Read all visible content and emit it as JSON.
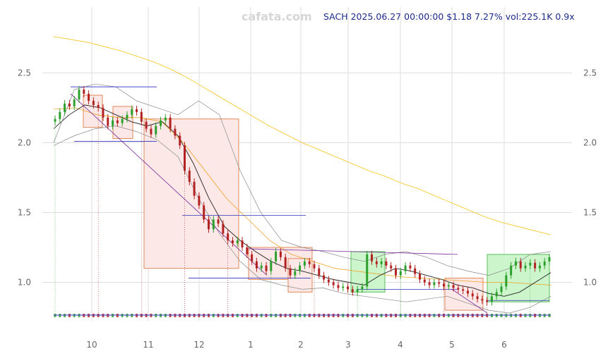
{
  "watermark": "cafata.com",
  "header": {
    "text": "SACH 2025.06.27 00:00:00 $1.18 7.27% vol:225.1K 0.9x"
  },
  "colors": {
    "up": "#2ca02c",
    "down": "#b22222",
    "ma_long": "#f5c518",
    "ma_mid": "#f0a020",
    "ma_short": "#222222",
    "band": "#888888",
    "trend": "#7a2a9a",
    "level": "#3030c0",
    "box_down": "#fde8e8",
    "box_up": "#ccf5cc"
  },
  "chart_data": {
    "type": "candlestick",
    "title": "",
    "x_ticks": [
      "10",
      "11",
      "12",
      "1",
      "2",
      "3",
      "4",
      "5",
      "6"
    ],
    "y_ticks": [
      "1.0",
      "1.5",
      "2.0",
      "2.5"
    ],
    "ylim": [
      0.75,
      2.82
    ],
    "xlim": [
      0,
      1
    ],
    "tick_positions": [
      0.13,
      0.2,
      0.33,
      0.46,
      0.59,
      0.72,
      0.78,
      0.84,
      0.92
    ],
    "close": [
      2.17,
      2.22,
      2.28,
      2.26,
      2.31,
      2.38,
      2.35,
      2.3,
      2.27,
      2.25,
      2.18,
      2.12,
      2.16,
      2.14,
      2.17,
      2.2,
      2.24,
      2.22,
      2.15,
      2.1,
      2.06,
      2.12,
      2.16,
      2.18,
      2.1,
      2.05,
      1.98,
      1.8,
      1.72,
      1.62,
      1.55,
      1.45,
      1.38,
      1.45,
      1.42,
      1.35,
      1.3,
      1.28,
      1.3,
      1.25,
      1.2,
      1.15,
      1.1,
      1.12,
      1.08,
      1.15,
      1.22,
      1.18,
      1.1,
      1.05,
      1.08,
      1.12,
      1.15,
      1.13,
      1.1,
      1.05,
      1.02,
      1.0,
      0.98,
      0.96,
      0.97,
      0.95,
      0.93,
      0.95,
      0.97,
      1.2,
      1.15,
      1.13,
      1.15,
      1.12,
      1.1,
      1.05,
      1.08,
      1.12,
      1.1,
      1.06,
      1.02,
      1.0,
      0.98,
      1.0,
      0.99,
      0.97,
      0.98,
      0.96,
      0.95,
      0.94,
      0.92,
      0.9,
      0.88,
      0.87,
      0.86,
      0.9,
      0.93,
      0.97,
      1.05,
      1.12,
      1.15,
      1.1,
      1.12,
      1.14,
      1.1,
      1.12,
      1.15,
      1.18
    ],
    "series": [
      {
        "name": "",
        "role": "ma_long",
        "values": [
          2.76,
          2.74,
          2.72,
          2.69,
          2.66,
          2.62,
          2.58,
          2.53,
          2.47,
          2.4,
          2.33,
          2.26,
          2.19,
          2.12,
          2.06,
          2.0,
          1.95,
          1.9,
          1.85,
          1.8,
          1.76,
          1.71,
          1.67,
          1.62,
          1.57,
          1.52,
          1.47,
          1.43,
          1.4,
          1.37,
          1.34
        ]
      },
      {
        "name": "",
        "role": "ma_mid",
        "values": [
          2.24,
          2.25,
          2.2,
          2.18,
          2.18,
          2.15,
          2.0,
          1.8,
          1.6,
          1.45,
          1.3,
          1.2,
          1.15,
          1.1,
          1.08,
          1.06,
          1.04,
          1.03,
          1.02,
          1.01,
          1.0,
          1.0,
          0.99,
          0.98
        ]
      },
      {
        "name": "",
        "role": "ma_short",
        "values": [
          2.1,
          2.2,
          2.27,
          2.25,
          2.2,
          2.15,
          2.12,
          2.15,
          2.05,
          1.85,
          1.6,
          1.4,
          1.3,
          1.22,
          1.15,
          1.1,
          1.08,
          1.05,
          1.02,
          1.0,
          0.98,
          1.05,
          1.1,
          1.08,
          1.05,
          1.02,
          0.98,
          0.96,
          0.92,
          0.9,
          0.93,
          1.0,
          1.07
        ]
      }
    ]
  }
}
